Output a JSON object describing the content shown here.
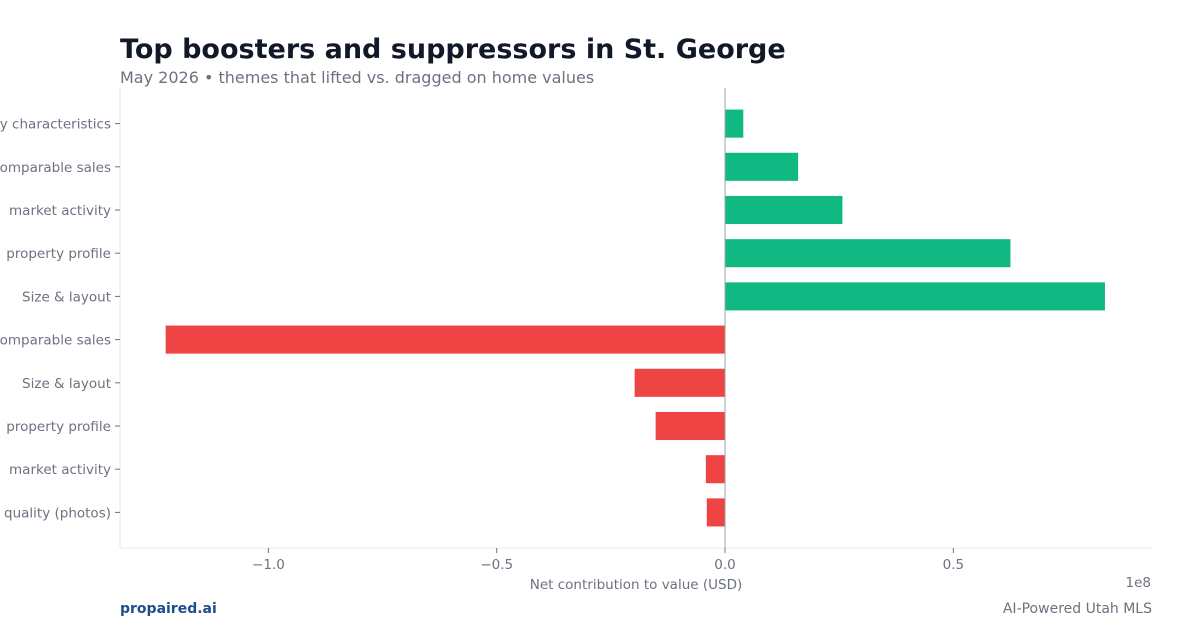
{
  "header": {
    "title": "Top boosters and suppressors in St. George",
    "subtitle": "May 2026 • themes that lifted vs. dragged on home values"
  },
  "footer": {
    "brand": "propaired.ai",
    "tagline": "AI-Powered Utah MLS"
  },
  "chart_data": {
    "type": "bar",
    "orientation": "horizontal",
    "categories": [
      "y characteristics",
      "omparable sales",
      "market activity",
      "property profile",
      "Size & layout",
      "omparable sales",
      "Size & layout",
      "property profile",
      "market activity",
      "quality (photos)"
    ],
    "values": [
      4000000,
      16000000,
      25700000,
      62500000,
      83200000,
      -122500000,
      -19800000,
      -15200000,
      -4200000,
      -4000000
    ],
    "colors": [
      "#10b981",
      "#10b981",
      "#10b981",
      "#10b981",
      "#10b981",
      "#ef4444",
      "#ef4444",
      "#ef4444",
      "#ef4444",
      "#ef4444"
    ],
    "positive_color": "#10b981",
    "negative_color": "#ef4444",
    "xlabel": "Net contribution to value (USD)",
    "ylabel": "",
    "xlim": [
      -132500000,
      93500000
    ],
    "xticks": [
      -100000000,
      -50000000,
      0,
      50000000
    ],
    "xtick_labels": [
      "−1.0",
      "−0.5",
      "0.0",
      "0.5"
    ],
    "offset_label": "1e8",
    "grid": false,
    "legend": "none"
  }
}
